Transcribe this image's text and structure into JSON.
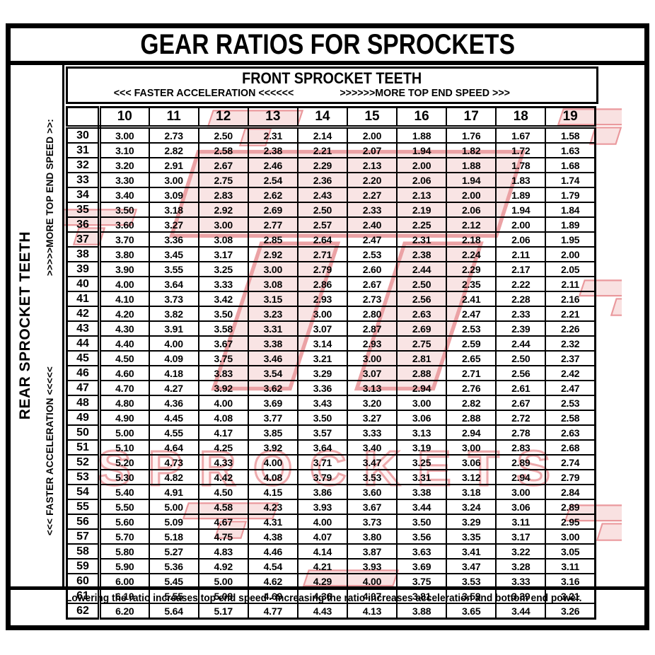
{
  "title": "GEAR RATIOS FOR SPROCKETS",
  "front_header": {
    "title": "FRONT SPROCKET TEETH",
    "accel_label": "<<< FASTER  ACCELERATION <<<<<<",
    "speed_label": ">>>>>>MORE TOP END SPEED >>>"
  },
  "left_panel": {
    "title": "REAR SPROCKET TEETH",
    "speed_label": ">>>>>MORE TOP END SPEED >>:",
    "accel_label": "<<< FASTER  ACCELERATION <<<<<"
  },
  "footer": {
    "note": "Lowering the ratio increases top end speed - Increasing the ratio increases acceleration and bottom end power."
  },
  "watermark": {
    "word": "SPROCKETS",
    "logo_name": "jt-sprockets-logo",
    "fill_color": "#f5caca",
    "stroke_color": "#d9474e"
  },
  "colors": {
    "border": "#000000",
    "background": "#ffffff",
    "text": "#000000"
  },
  "chart_data": {
    "type": "table",
    "title": "GEAR RATIOS FOR SPROCKETS",
    "x_axis_label": "FRONT SPROCKET TEETH",
    "y_axis_label": "REAR SPROCKET TEETH",
    "columns": [
      "10",
      "11",
      "12",
      "13",
      "14",
      "15",
      "16",
      "17",
      "18",
      "19"
    ],
    "rows": [
      {
        "rear": "30",
        "values": [
          "3.00",
          "2.73",
          "2.50",
          "2.31",
          "2.14",
          "2.00",
          "1.88",
          "1.76",
          "1.67",
          "1.58"
        ]
      },
      {
        "rear": "31",
        "values": [
          "3.10",
          "2.82",
          "2.58",
          "2.38",
          "2.21",
          "2.07",
          "1.94",
          "1.82",
          "1.72",
          "1.63"
        ]
      },
      {
        "rear": "32",
        "values": [
          "3.20",
          "2.91",
          "2.67",
          "2.46",
          "2.29",
          "2.13",
          "2.00",
          "1.88",
          "1.78",
          "1.68"
        ]
      },
      {
        "rear": "33",
        "values": [
          "3.30",
          "3.00",
          "2.75",
          "2.54",
          "2.36",
          "2.20",
          "2.06",
          "1.94",
          "1.83",
          "1.74"
        ]
      },
      {
        "rear": "34",
        "values": [
          "3.40",
          "3.09",
          "2.83",
          "2.62",
          "2.43",
          "2.27",
          "2.13",
          "2.00",
          "1.89",
          "1.79"
        ]
      },
      {
        "rear": "35",
        "values": [
          "3.50",
          "3.18",
          "2.92",
          "2.69",
          "2.50",
          "2.33",
          "2.19",
          "2.06",
          "1.94",
          "1.84"
        ]
      },
      {
        "rear": "36",
        "values": [
          "3.60",
          "3.27",
          "3.00",
          "2.77",
          "2.57",
          "2.40",
          "2.25",
          "2.12",
          "2.00",
          "1.89"
        ]
      },
      {
        "rear": "37",
        "values": [
          "3.70",
          "3.36",
          "3.08",
          "2.85",
          "2.64",
          "2.47",
          "2.31",
          "2.18",
          "2.06",
          "1.95"
        ]
      },
      {
        "rear": "38",
        "values": [
          "3.80",
          "3.45",
          "3.17",
          "2.92",
          "2.71",
          "2.53",
          "2.38",
          "2.24",
          "2.11",
          "2.00"
        ]
      },
      {
        "rear": "39",
        "values": [
          "3.90",
          "3.55",
          "3.25",
          "3.00",
          "2.79",
          "2.60",
          "2.44",
          "2.29",
          "2.17",
          "2.05"
        ]
      },
      {
        "rear": "40",
        "values": [
          "4.00",
          "3.64",
          "3.33",
          "3.08",
          "2.86",
          "2.67",
          "2.50",
          "2.35",
          "2.22",
          "2.11"
        ]
      },
      {
        "rear": "41",
        "values": [
          "4.10",
          "3.73",
          "3.42",
          "3.15",
          "2.93",
          "2.73",
          "2.56",
          "2.41",
          "2.28",
          "2.16"
        ]
      },
      {
        "rear": "42",
        "values": [
          "4.20",
          "3.82",
          "3.50",
          "3.23",
          "3.00",
          "2.80",
          "2.63",
          "2.47",
          "2.33",
          "2.21"
        ]
      },
      {
        "rear": "43",
        "values": [
          "4.30",
          "3.91",
          "3.58",
          "3.31",
          "3.07",
          "2.87",
          "2.69",
          "2.53",
          "2.39",
          "2.26"
        ]
      },
      {
        "rear": "44",
        "values": [
          "4.40",
          "4.00",
          "3.67",
          "3.38",
          "3.14",
          "2.93",
          "2.75",
          "2.59",
          "2.44",
          "2.32"
        ]
      },
      {
        "rear": "45",
        "values": [
          "4.50",
          "4.09",
          "3.75",
          "3.46",
          "3.21",
          "3.00",
          "2.81",
          "2.65",
          "2.50",
          "2.37"
        ]
      },
      {
        "rear": "46",
        "values": [
          "4.60",
          "4.18",
          "3.83",
          "3.54",
          "3.29",
          "3.07",
          "2.88",
          "2.71",
          "2.56",
          "2.42"
        ]
      },
      {
        "rear": "47",
        "values": [
          "4.70",
          "4.27",
          "3.92",
          "3.62",
          "3.36",
          "3.13",
          "2.94",
          "2.76",
          "2.61",
          "2.47"
        ]
      },
      {
        "rear": "48",
        "values": [
          "4.80",
          "4.36",
          "4.00",
          "3.69",
          "3.43",
          "3.20",
          "3.00",
          "2.82",
          "2.67",
          "2.53"
        ]
      },
      {
        "rear": "49",
        "values": [
          "4.90",
          "4.45",
          "4.08",
          "3.77",
          "3.50",
          "3.27",
          "3.06",
          "2.88",
          "2.72",
          "2.58"
        ]
      },
      {
        "rear": "50",
        "values": [
          "5.00",
          "4.55",
          "4.17",
          "3.85",
          "3.57",
          "3.33",
          "3.13",
          "2.94",
          "2.78",
          "2.63"
        ]
      },
      {
        "rear": "51",
        "values": [
          "5.10",
          "4.64",
          "4.25",
          "3.92",
          "3.64",
          "3.40",
          "3.19",
          "3.00",
          "2.83",
          "2.68"
        ]
      },
      {
        "rear": "52",
        "values": [
          "5.20",
          "4.73",
          "4.33",
          "4.00",
          "3.71",
          "3.47",
          "3.25",
          "3.06",
          "2.89",
          "2.74"
        ]
      },
      {
        "rear": "53",
        "values": [
          "5.30",
          "4.82",
          "4.42",
          "4.08",
          "3.79",
          "3.53",
          "3.31",
          "3.12",
          "2.94",
          "2.79"
        ]
      },
      {
        "rear": "54",
        "values": [
          "5.40",
          "4.91",
          "4.50",
          "4.15",
          "3.86",
          "3.60",
          "3.38",
          "3.18",
          "3.00",
          "2.84"
        ]
      },
      {
        "rear": "55",
        "values": [
          "5.50",
          "5.00",
          "4.58",
          "4.23",
          "3.93",
          "3.67",
          "3.44",
          "3.24",
          "3.06",
          "2.89"
        ]
      },
      {
        "rear": "56",
        "values": [
          "5.60",
          "5.09",
          "4.67",
          "4.31",
          "4.00",
          "3.73",
          "3.50",
          "3.29",
          "3.11",
          "2.95"
        ]
      },
      {
        "rear": "57",
        "values": [
          "5.70",
          "5.18",
          "4.75",
          "4.38",
          "4.07",
          "3.80",
          "3.56",
          "3.35",
          "3.17",
          "3.00"
        ]
      },
      {
        "rear": "58",
        "values": [
          "5.80",
          "5.27",
          "4.83",
          "4.46",
          "4.14",
          "3.87",
          "3.63",
          "3.41",
          "3.22",
          "3.05"
        ]
      },
      {
        "rear": "59",
        "values": [
          "5.90",
          "5.36",
          "4.92",
          "4.54",
          "4.21",
          "3.93",
          "3.69",
          "3.47",
          "3.28",
          "3.11"
        ]
      },
      {
        "rear": "60",
        "values": [
          "6.00",
          "5.45",
          "5.00",
          "4.62",
          "4.29",
          "4.00",
          "3.75",
          "3.53",
          "3.33",
          "3.16"
        ]
      },
      {
        "rear": "61",
        "values": [
          "6.10",
          "5.55",
          "5.08",
          "4.69",
          "4.36",
          "4.07",
          "3.81",
          "3.59",
          "3.39",
          "3.21"
        ]
      },
      {
        "rear": "62",
        "values": [
          "6.20",
          "5.64",
          "5.17",
          "4.77",
          "4.43",
          "4.13",
          "3.88",
          "3.65",
          "3.44",
          "3.26"
        ]
      }
    ]
  }
}
